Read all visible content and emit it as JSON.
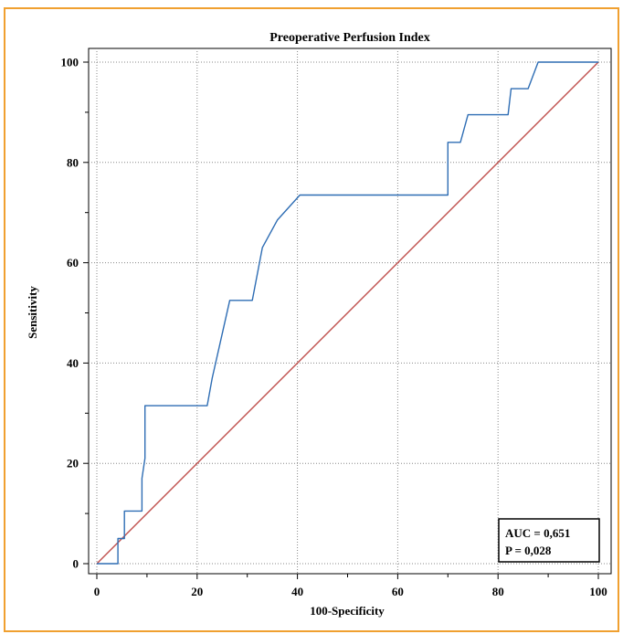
{
  "chart_data": {
    "type": "line",
    "title": "Preoperative Perfusion Index",
    "xlabel": "100-Specificity",
    "ylabel": "Sensitivity",
    "xlim": [
      0,
      100
    ],
    "ylim": [
      0,
      100
    ],
    "xticks": [
      0,
      20,
      40,
      60,
      80,
      100
    ],
    "yticks": [
      0,
      20,
      40,
      60,
      80,
      100
    ],
    "grid": true,
    "series": [
      {
        "color": "#2e6db4",
        "x": [
          0,
          4.2,
          4.2,
          5.5,
          5.5,
          9,
          9,
          9.6,
          9.6,
          22,
          23,
          26.5,
          31,
          33,
          36,
          40.5,
          70,
          70,
          72.5,
          74,
          82,
          82.6,
          86,
          88,
          100
        ],
        "y": [
          0,
          0,
          5,
          5,
          10.5,
          10.5,
          17,
          21,
          31.5,
          31.5,
          37,
          52.5,
          52.5,
          63,
          68.5,
          73.5,
          73.5,
          84,
          84,
          89.5,
          89.5,
          94.7,
          94.7,
          100,
          100
        ]
      },
      {
        "color": "#c0504d",
        "x": [
          0,
          100
        ],
        "y": [
          0,
          100
        ]
      }
    ],
    "annotation": [
      "AUC = 0,651",
      "P = 0,028"
    ]
  }
}
